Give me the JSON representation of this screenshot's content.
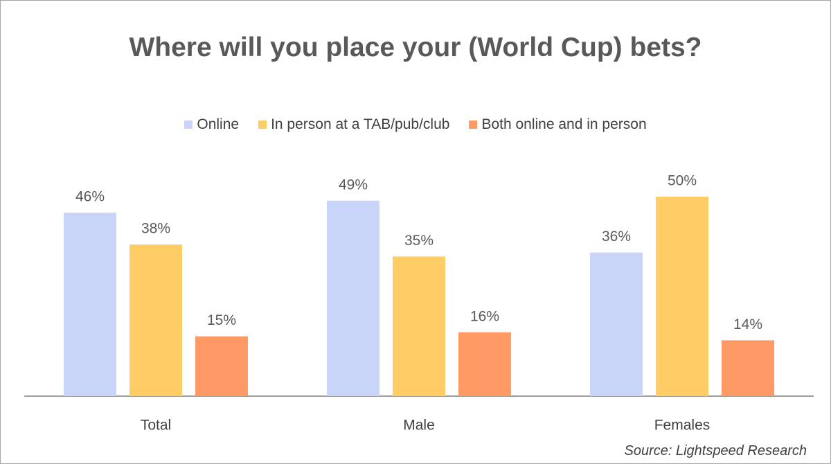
{
  "chart_data": {
    "type": "bar",
    "title": "Where will you place your (World Cup) bets?",
    "categories": [
      "Total",
      "Male",
      "Females"
    ],
    "series": [
      {
        "name": "Online",
        "color": "#c9d5f8",
        "values": [
          46,
          49,
          36
        ],
        "value_labels": [
          "46%",
          "49%",
          "36%"
        ]
      },
      {
        "name": "In person at a TAB/pub/club",
        "color": "#ffcc66",
        "values": [
          38,
          35,
          50
        ],
        "value_labels": [
          "38%",
          "35%",
          "50%"
        ]
      },
      {
        "name": "Both online and in person",
        "color": "#ff9966",
        "values": [
          15,
          16,
          14
        ],
        "value_labels": [
          "15%",
          "16%",
          "14%"
        ]
      }
    ],
    "source": "Source: Lightspeed Research"
  }
}
